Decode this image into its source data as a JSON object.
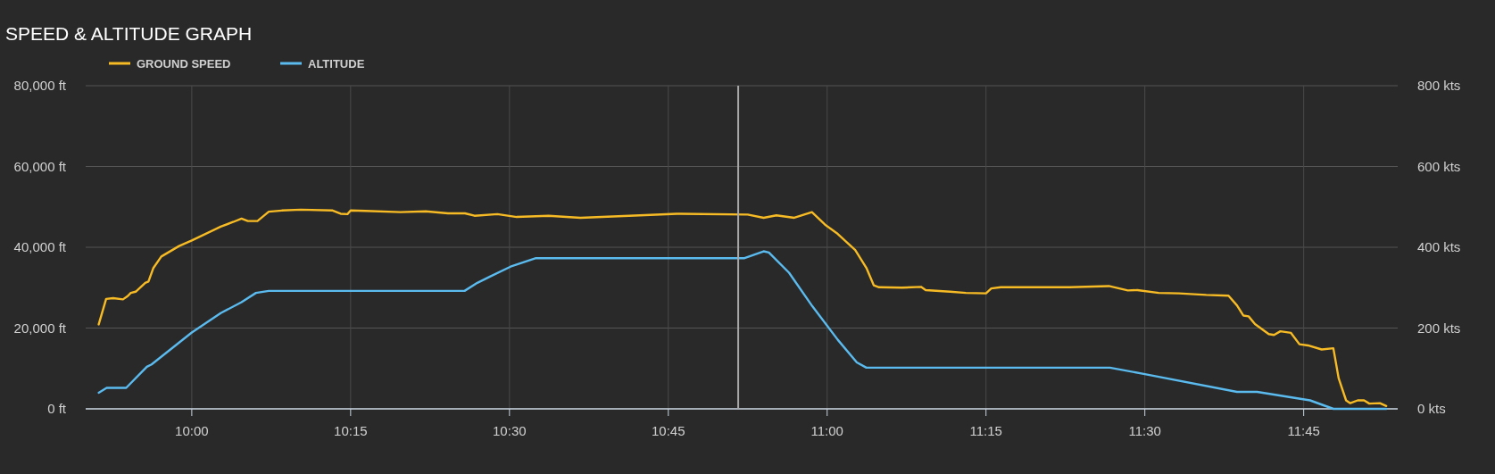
{
  "chart_data": {
    "type": "line",
    "title": "SPEED & ALTITUDE GRAPH",
    "legend": "top left",
    "grid": true,
    "marker": "none",
    "line_style": "solid",
    "xlim": [
      9.833,
      11.898
    ],
    "xticks": [
      {
        "value": 10,
        "label": "10:00"
      },
      {
        "value": 10.25,
        "label": "10:15"
      },
      {
        "value": 10.5,
        "label": "10:30"
      },
      {
        "value": 10.75,
        "label": "10:45"
      },
      {
        "value": 11,
        "label": "11:00"
      },
      {
        "value": 11.25,
        "label": "11:15"
      },
      {
        "value": 11.5,
        "label": "11:30"
      },
      {
        "value": 11.75,
        "label": "11:45"
      }
    ],
    "ylim": [
      0,
      80000
    ],
    "yticks": [
      {
        "value": 0,
        "label": "0 ft"
      },
      {
        "value": 20000,
        "label": "20,000 ft"
      },
      {
        "value": 40000,
        "label": "40,000 ft"
      },
      {
        "value": 60000,
        "label": "60,000 ft"
      },
      {
        "value": 80000,
        "label": "80,000 ft"
      }
    ],
    "y2lim": [
      0,
      800
    ],
    "y2ticks": [
      {
        "value": 0,
        "label": "0 kts"
      },
      {
        "value": 200,
        "label": "200 kts"
      },
      {
        "value": 400,
        "label": "400 kts"
      },
      {
        "value": 600,
        "label": "600 kts"
      },
      {
        "value": 800,
        "label": "800 kts"
      }
    ],
    "ref_lines": [
      {
        "axis": "x",
        "value": 10.86,
        "color": "#a8a8a8"
      }
    ],
    "series": [
      {
        "name": "GROUND SPEED",
        "color": "#f7bb25",
        "axis": "y2",
        "x": [
          9.8535,
          9.8652,
          9.8763,
          9.8917,
          9.899,
          9.904,
          9.9117,
          9.9268,
          9.9318,
          9.9393,
          9.952,
          9.98,
          10.0,
          10.0455,
          10.0657,
          10.0783,
          10.0883,
          10.1033,
          10.1212,
          10.1417,
          10.1717,
          10.2217,
          10.2343,
          10.245,
          10.25,
          10.2733,
          10.3283,
          10.3683,
          10.4033,
          10.43,
          10.445,
          10.481,
          10.5113,
          10.5617,
          10.6117,
          10.6883,
          10.7633,
          10.875,
          10.9,
          10.92,
          10.9483,
          10.976,
          10.9967,
          11.0167,
          11.0442,
          11.0617,
          11.0733,
          11.0817,
          11.1175,
          11.1477,
          11.155,
          11.1933,
          11.2183,
          11.25,
          11.2583,
          11.2733,
          11.3817,
          11.4433,
          11.4733,
          11.4883,
          11.5217,
          11.5533,
          11.5967,
          11.6317,
          11.645,
          11.655,
          11.6633,
          11.6733,
          11.695,
          11.7033,
          11.7133,
          11.73,
          11.7433,
          11.7567,
          11.7783,
          11.7967,
          11.805,
          11.8167,
          11.8233,
          11.835,
          11.845,
          11.8533,
          11.87,
          11.88
        ],
        "values": [
          209,
          272,
          274,
          271,
          279,
          287,
          290,
          312,
          315,
          348,
          377,
          403,
          417,
          451,
          463,
          471,
          465,
          465,
          488,
          491,
          493,
          491,
          483,
          482,
          491,
          490,
          487,
          489,
          484,
          484,
          478,
          482,
          475,
          478,
          473,
          478,
          483,
          481,
          473,
          479,
          473,
          487,
          456,
          433,
          393,
          349,
          306,
          301,
          300,
          302,
          294,
          290,
          287,
          286,
          298,
          301,
          301,
          304,
          293,
          294,
          287,
          286,
          282,
          280,
          256,
          231,
          229,
          210,
          185,
          183,
          192,
          188,
          160,
          157,
          147,
          150,
          76,
          21,
          14,
          21,
          21,
          13,
          14,
          7
        ]
      },
      {
        "name": "ALTITUDE",
        "color": "#5bbbef",
        "axis": "y",
        "x": [
          9.8535,
          9.866,
          9.8967,
          9.9293,
          9.9367,
          10.0,
          10.0455,
          10.0783,
          10.101,
          10.1212,
          10.4293,
          10.4495,
          10.47,
          10.5017,
          10.5417,
          10.87,
          10.9,
          10.9083,
          10.94,
          10.9767,
          11.0167,
          11.0467,
          11.0617,
          11.445,
          11.5,
          11.645,
          11.6767,
          11.76,
          11.7967,
          11.88
        ],
        "values": [
          4000,
          5200,
          5200,
          10400,
          11000,
          18900,
          23700,
          26400,
          28700,
          29200,
          29200,
          31200,
          32800,
          35200,
          37300,
          37300,
          39000,
          38700,
          33700,
          25400,
          17100,
          11500,
          10200,
          10200,
          8600,
          4200,
          4200,
          2100,
          0,
          0
        ]
      }
    ]
  }
}
